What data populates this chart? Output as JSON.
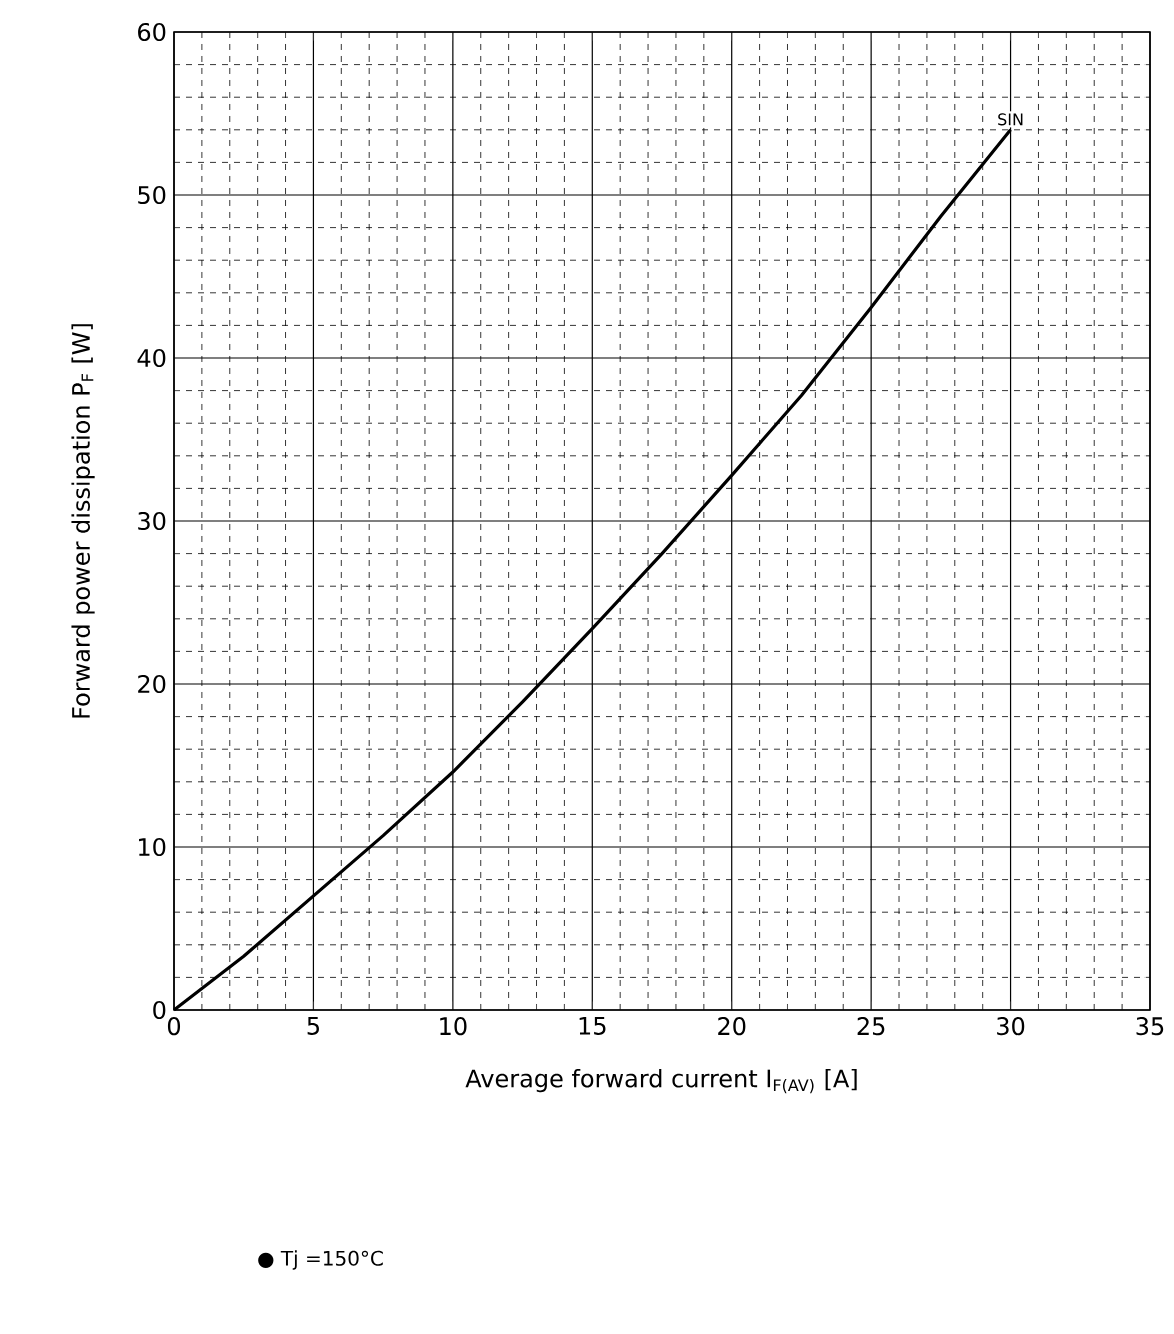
{
  "chart_data": {
    "type": "line",
    "xlabel": "Average forward current  I$_{F(AV)}$   [A]",
    "ylabel": "Forward power dissipation  P$_{F}$   [W]",
    "x": [
      0,
      2.5,
      5,
      7.5,
      10,
      12.5,
      15,
      17.5,
      20,
      22.5,
      25,
      27.5,
      30
    ],
    "values": [
      0,
      3.3,
      7.0,
      10.7,
      14.6,
      18.9,
      23.4,
      28.0,
      32.8,
      37.7,
      43.1,
      48.7,
      54
    ],
    "color": "#000000",
    "line_style": "solid",
    "marker": "none",
    "xlim": [
      0,
      35
    ],
    "ylim": [
      0,
      60
    ],
    "xticks": [
      0,
      5,
      10,
      15,
      20,
      25,
      30,
      35
    ],
    "yticks": [
      0,
      10,
      20,
      30,
      40,
      50,
      60
    ],
    "grid": true,
    "annotations": [
      {
        "text": "SIN",
        "x": 30,
        "y": 54
      },
      "● Tj =150°C"
    ]
  }
}
